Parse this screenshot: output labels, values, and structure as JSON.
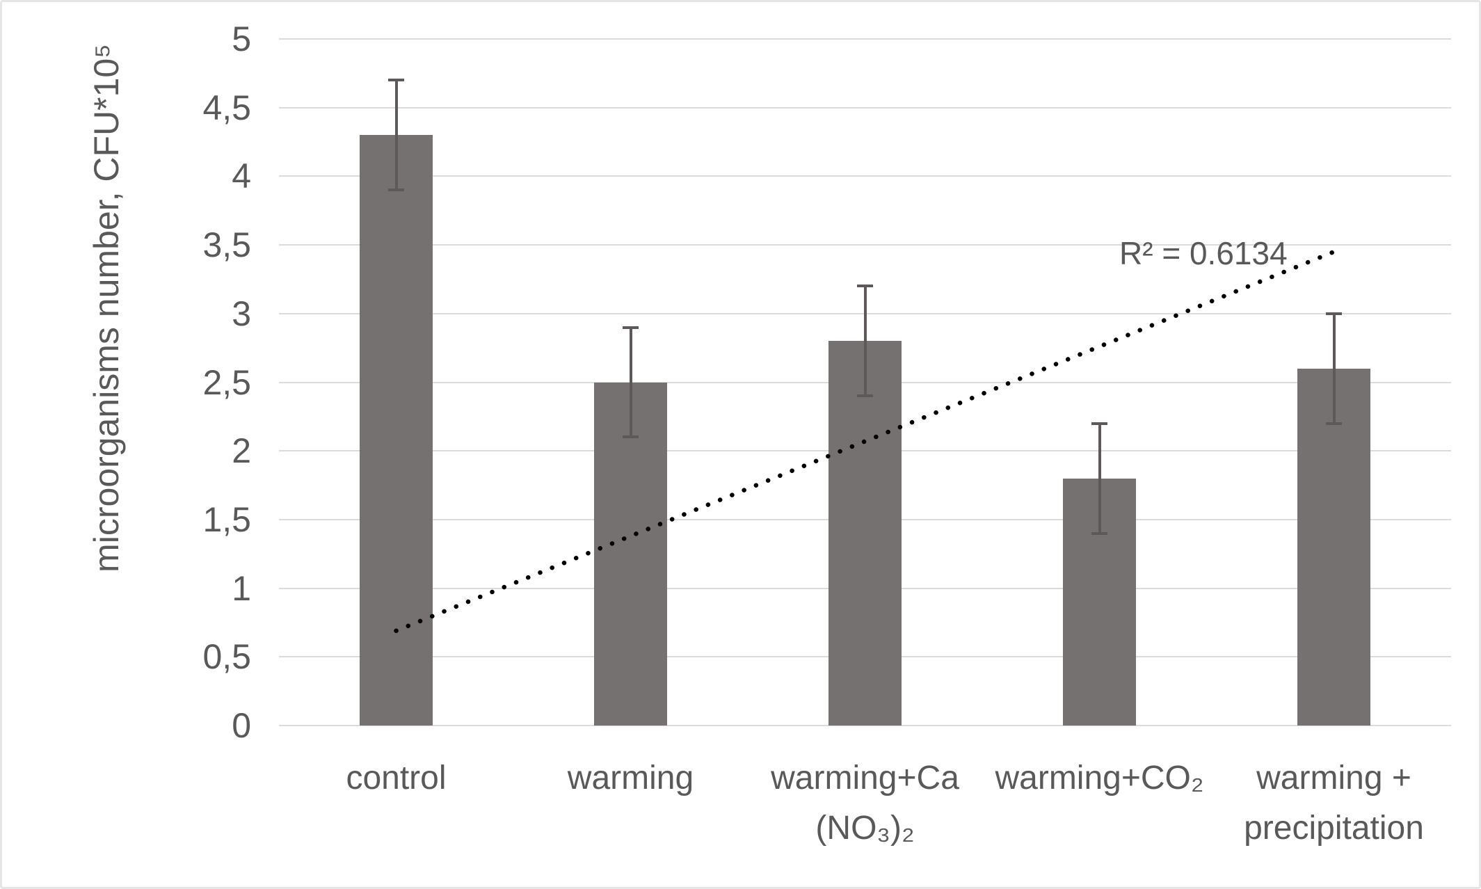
{
  "chart_data": {
    "type": "bar",
    "title": "",
    "xlabel": "",
    "ylabel": "microorganisms number, CFU*10⁵",
    "categories": [
      "control",
      "warming",
      "warming+Ca (NO₃)₂",
      "warming+CO₂",
      "warming + precipitation"
    ],
    "values": [
      4.3,
      2.5,
      2.8,
      1.8,
      2.6
    ],
    "error_bars": [
      0.4,
      0.4,
      0.4,
      0.4,
      0.4
    ],
    "ylim": [
      0,
      5
    ],
    "ytick_step": 0.5,
    "ytick_labels": [
      "0",
      "0,5",
      "1",
      "1,5",
      "2",
      "2,5",
      "3",
      "3,5",
      "4",
      "4,5",
      "5"
    ],
    "decimal_separator": ",",
    "grid": true,
    "legend": "none",
    "bar_color": "#767171",
    "error_bar_color": "#5d5959",
    "gridline_color": "#dcdcdc",
    "text_color": "#595959",
    "trendline": {
      "type": "linear",
      "style": "dotted",
      "color": "#000000",
      "start_value": 0.69,
      "end_value": 3.45,
      "r_squared": 0.6134,
      "r2_label": "R² = 0.6134"
    }
  }
}
